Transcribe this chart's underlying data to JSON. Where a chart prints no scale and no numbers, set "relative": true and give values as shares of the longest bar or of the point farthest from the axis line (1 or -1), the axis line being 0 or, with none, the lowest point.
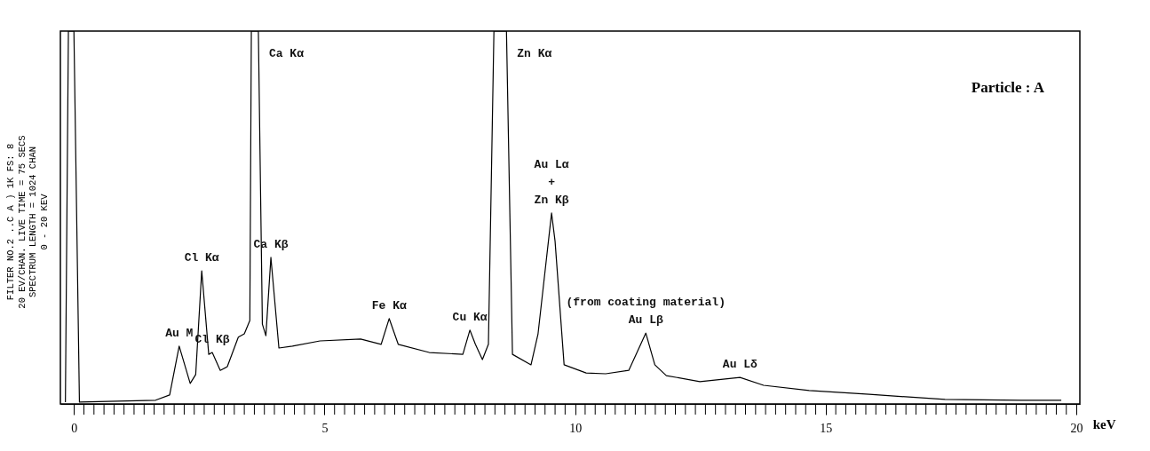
{
  "chart_data": {
    "type": "line",
    "relative": true,
    "xlabel": "keV",
    "x": [
      -0.17,
      -0.11,
      0,
      0.11,
      1.63,
      1.91,
      2.1,
      2.32,
      2.43,
      2.55,
      2.69,
      2.76,
      2.92,
      3.06,
      3.28,
      3.4,
      3.51,
      3.54,
      3.68,
      3.76,
      3.83,
      3.93,
      4.09,
      4.36,
      4.91,
      5.72,
      6.13,
      6.29,
      6.47,
      7.09,
      7.76,
      7.9,
      8.01,
      8.15,
      8.27,
      8.38,
      8.63,
      8.75,
      9.12,
      9.26,
      9.53,
      9.6,
      9.78,
      10.22,
      10.61,
      11.07,
      11.41,
      11.59,
      11.82,
      12.49,
      13.29,
      13.76,
      14.67,
      15.87,
      17.38,
      18.9,
      19.7
    ],
    "series": [
      {
        "color": "#000000",
        "values": [
          0.005,
          1,
          1,
          0.005,
          0.01,
          0.024,
          0.155,
          0.055,
          0.079,
          0.357,
          0.133,
          0.138,
          0.09,
          0.1,
          0.179,
          0.188,
          0.224,
          1,
          1,
          0.214,
          0.183,
          0.393,
          0.15,
          0.155,
          0.169,
          0.174,
          0.16,
          0.229,
          0.16,
          0.138,
          0.133,
          0.198,
          0.16,
          0.119,
          0.16,
          1,
          1,
          0.133,
          0.105,
          0.188,
          0.512,
          0.436,
          0.105,
          0.083,
          0.081,
          0.09,
          0.19,
          0.105,
          0.076,
          0.06,
          0.071,
          0.05,
          0.036,
          0.026,
          0.012,
          0.01,
          0.01
        ]
      }
    ],
    "xlim": [
      -0.27,
      20.07
    ],
    "xticks": [
      0,
      {
        "value": 0.2,
        "label": null
      },
      {
        "value": 0.4,
        "label": null
      },
      {
        "value": 0.6,
        "label": null
      },
      {
        "value": 0.8,
        "label": null
      },
      {
        "value": 1,
        "label": null
      },
      {
        "value": 1.2,
        "label": null
      },
      {
        "value": 1.4,
        "label": null
      },
      {
        "value": 1.6,
        "label": null
      },
      {
        "value": 1.8,
        "label": null
      },
      {
        "value": 2,
        "label": null
      },
      {
        "value": 2.2,
        "label": null
      },
      {
        "value": 2.4,
        "label": null
      },
      {
        "value": 2.6,
        "label": null
      },
      {
        "value": 2.8,
        "label": null
      },
      {
        "value": 3,
        "label": null
      },
      {
        "value": 3.2,
        "label": null
      },
      {
        "value": 3.4,
        "label": null
      },
      {
        "value": 3.6,
        "label": null
      },
      {
        "value": 3.8,
        "label": null
      },
      {
        "value": 4,
        "label": null
      },
      {
        "value": 4.2,
        "label": null
      },
      {
        "value": 4.4,
        "label": null
      },
      {
        "value": 4.6,
        "label": null
      },
      {
        "value": 4.8,
        "label": null
      },
      5,
      {
        "value": 5.2,
        "label": null
      },
      {
        "value": 5.4,
        "label": null
      },
      {
        "value": 5.6,
        "label": null
      },
      {
        "value": 5.8,
        "label": null
      },
      {
        "value": 6,
        "label": null
      },
      {
        "value": 6.2,
        "label": null
      },
      {
        "value": 6.4,
        "label": null
      },
      {
        "value": 6.6,
        "label": null
      },
      {
        "value": 6.8,
        "label": null
      },
      {
        "value": 7,
        "label": null
      },
      {
        "value": 7.2,
        "label": null
      },
      {
        "value": 7.4,
        "label": null
      },
      {
        "value": 7.6,
        "label": null
      },
      {
        "value": 7.8,
        "label": null
      },
      {
        "value": 8,
        "label": null
      },
      {
        "value": 8.2,
        "label": null
      },
      {
        "value": 8.4,
        "label": null
      },
      {
        "value": 8.6,
        "label": null
      },
      {
        "value": 8.8,
        "label": null
      },
      {
        "value": 9,
        "label": null
      },
      {
        "value": 9.2,
        "label": null
      },
      {
        "value": 9.4,
        "label": null
      },
      {
        "value": 9.6,
        "label": null
      },
      {
        "value": 9.8,
        "label": null
      },
      10,
      {
        "value": 10.2,
        "label": null
      },
      {
        "value": 10.4,
        "label": null
      },
      {
        "value": 10.6,
        "label": null
      },
      {
        "value": 10.8,
        "label": null
      },
      {
        "value": 11,
        "label": null
      },
      {
        "value": 11.2,
        "label": null
      },
      {
        "value": 11.4,
        "label": null
      },
      {
        "value": 11.6,
        "label": null
      },
      {
        "value": 11.8,
        "label": null
      },
      {
        "value": 12,
        "label": null
      },
      {
        "value": 12.2,
        "label": null
      },
      {
        "value": 12.4,
        "label": null
      },
      {
        "value": 12.6,
        "label": null
      },
      {
        "value": 12.8,
        "label": null
      },
      {
        "value": 13,
        "label": null
      },
      {
        "value": 13.2,
        "label": null
      },
      {
        "value": 13.4,
        "label": null
      },
      {
        "value": 13.6,
        "label": null
      },
      {
        "value": 13.8,
        "label": null
      },
      {
        "value": 14,
        "label": null
      },
      {
        "value": 14.2,
        "label": null
      },
      {
        "value": 14.4,
        "label": null
      },
      {
        "value": 14.6,
        "label": null
      },
      {
        "value": 14.8,
        "label": null
      },
      15,
      {
        "value": 15.2,
        "label": null
      },
      {
        "value": 15.4,
        "label": null
      },
      {
        "value": 15.6,
        "label": null
      },
      {
        "value": 15.8,
        "label": null
      },
      {
        "value": 16,
        "label": null
      },
      {
        "value": 16.2,
        "label": null
      },
      {
        "value": 16.4,
        "label": null
      },
      {
        "value": 16.6,
        "label": null
      },
      {
        "value": 16.8,
        "label": null
      },
      {
        "value": 17,
        "label": null
      },
      {
        "value": 17.2,
        "label": null
      },
      {
        "value": 17.4,
        "label": null
      },
      {
        "value": 17.6,
        "label": null
      },
      {
        "value": 17.8,
        "label": null
      },
      {
        "value": 18,
        "label": null
      },
      {
        "value": 18.2,
        "label": null
      },
      {
        "value": 18.4,
        "label": null
      },
      {
        "value": 18.6,
        "label": null
      },
      {
        "value": 18.8,
        "label": null
      },
      {
        "value": 19,
        "label": null
      },
      {
        "value": 19.2,
        "label": null
      },
      {
        "value": 19.4,
        "label": null
      },
      {
        "value": 19.6,
        "label": null
      },
      {
        "value": 19.8,
        "label": null
      },
      20
    ],
    "grid": false,
    "annotations": [
      "Particle : A",
      "FILTER NO.2 ..C A )   1K FS: 8",
      "20 EV/CHAN.  LIVE TIME =  75 SECS",
      "SPECTRUM LENGTH =  1024 CHAN",
      "0 - 20 KEV",
      {
        "text": "Au M",
        "x": 2.1,
        "y": 0.155
      },
      {
        "text": "Cl Kα",
        "x": 2.55,
        "y": 0.357
      },
      {
        "text": "Cl Kβ",
        "x": 2.76,
        "y": 0.138
      },
      {
        "text": "Ca Kα",
        "x": 3.68,
        "y": 1
      },
      {
        "text": "Ca Kβ",
        "x": 3.93,
        "y": 0.393
      },
      {
        "text": "Fe Kα",
        "x": 6.29,
        "y": 0.229
      },
      {
        "text": "Cu Kα",
        "x": 7.9,
        "y": 0.198
      },
      {
        "text": "Zn Kα",
        "x": 8.63,
        "y": 1
      },
      {
        "text": "Au Lα\n+\nZn Kβ",
        "x": 9.53,
        "y": 0.512
      },
      {
        "text": "(from coating material)",
        "x": 11.41,
        "y": 0.19
      },
      {
        "text": "Au Lβ",
        "x": 11.41,
        "y": 0.19
      },
      {
        "text": "Au Lδ",
        "x": 13.29,
        "y": 0.071
      }
    ]
  }
}
